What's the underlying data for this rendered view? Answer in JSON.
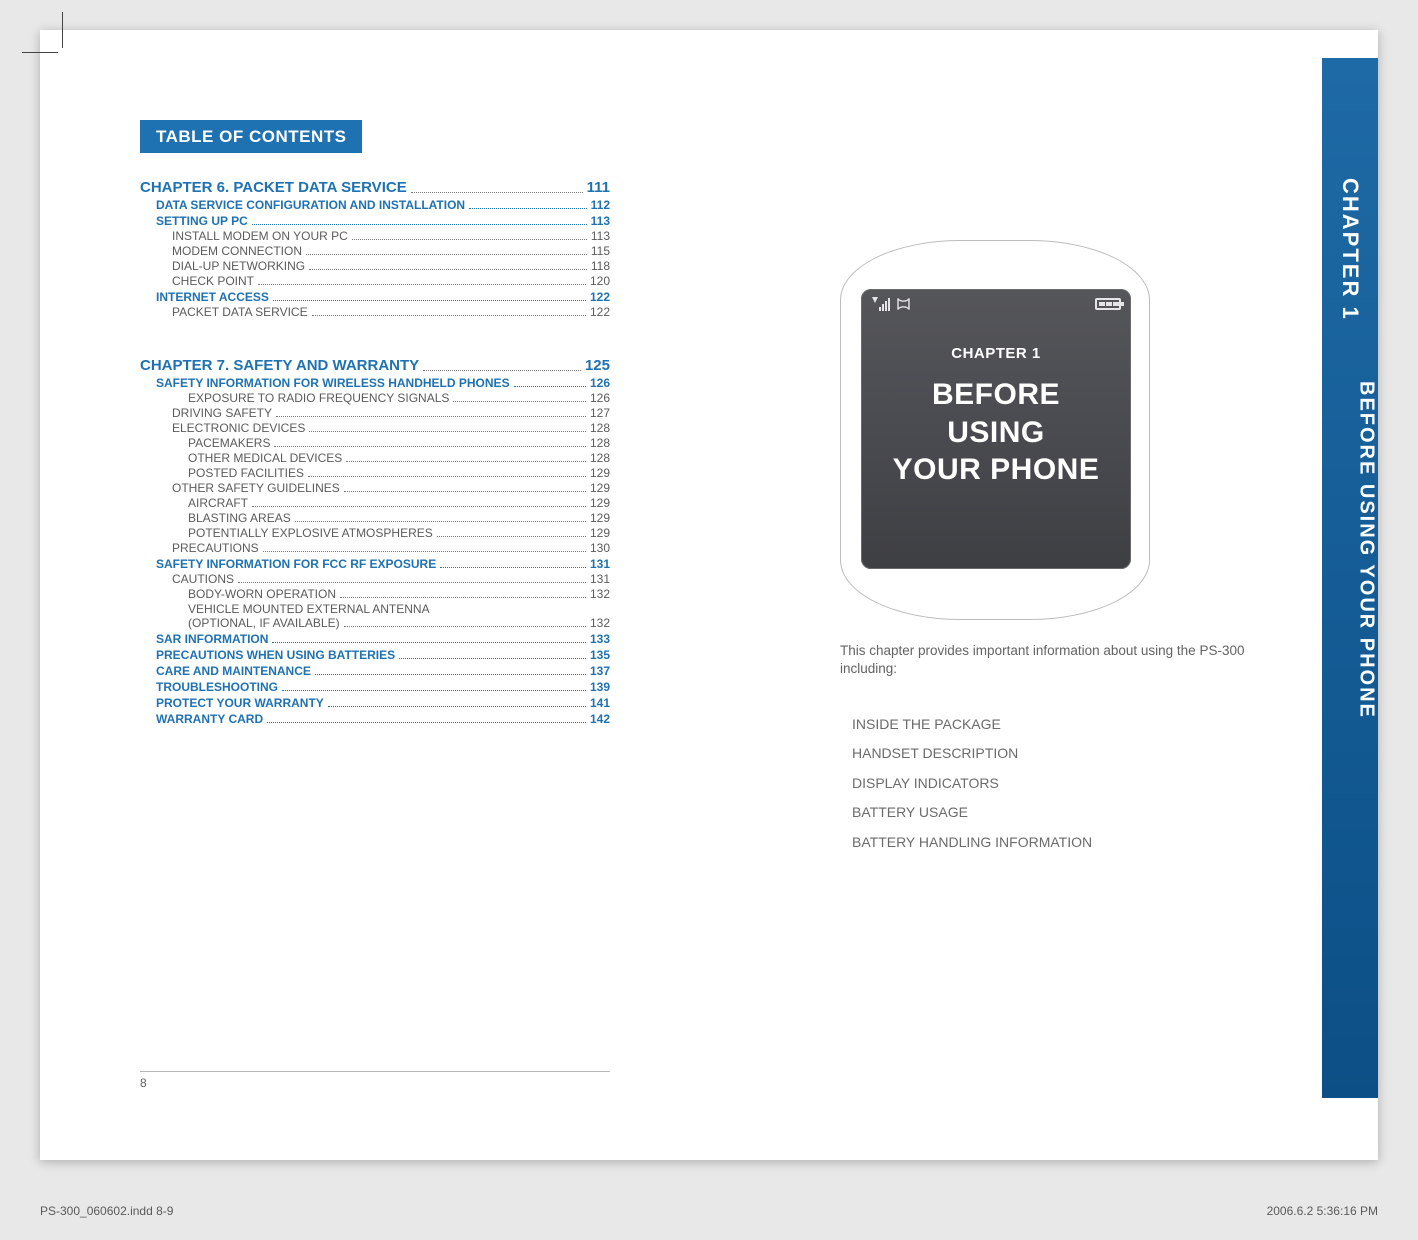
{
  "colors": {
    "accent": "#1f72b2",
    "text": "#5b5b5b",
    "sidetab_top": "#1e6aa6",
    "sidetab_bottom": "#0c4f86",
    "page_bg": "#e8e8e8",
    "sheet_bg": "#ffffff"
  },
  "toc": {
    "heading": "TABLE OF CONTENTS",
    "chapters": [
      {
        "title": "CHAPTER 6. PACKET DATA SERVICE",
        "page": "111",
        "sections": [
          {
            "label": "DATA SERVICE CONFIGURATION AND INSTALLATION",
            "page": "112",
            "level": "sec"
          },
          {
            "label": "SETTING UP PC",
            "page": "113",
            "level": "sec"
          },
          {
            "label": "INSTALL MODEM ON YOUR PC",
            "page": "113",
            "level": "sub"
          },
          {
            "label": "MODEM CONNECTION",
            "page": "115",
            "level": "sub"
          },
          {
            "label": "DIAL-UP NETWORKING",
            "page": "118",
            "level": "sub"
          },
          {
            "label": "CHECK POINT",
            "page": "120",
            "level": "sub"
          },
          {
            "label": "INTERNET ACCESS",
            "page": "122",
            "level": "sec"
          },
          {
            "label": "PACKET DATA SERVICE",
            "page": "122",
            "level": "sub"
          }
        ]
      },
      {
        "title": "CHAPTER 7. SAFETY AND WARRANTY",
        "page": "125",
        "sections": [
          {
            "label": "SAFETY INFORMATION FOR WIRELESS HANDHELD PHONES",
            "page": "126",
            "level": "sec"
          },
          {
            "label": "EXPOSURE TO RADIO FREQUENCY SIGNALS",
            "page": "126",
            "level": "sub2"
          },
          {
            "label": "DRIVING SAFETY",
            "page": "127",
            "level": "sub"
          },
          {
            "label": "ELECTRONIC DEVICES",
            "page": "128",
            "level": "sub"
          },
          {
            "label": "PACEMAKERS",
            "page": "128",
            "level": "sub2"
          },
          {
            "label": "OTHER MEDICAL DEVICES",
            "page": "128",
            "level": "sub2"
          },
          {
            "label": "POSTED FACILITIES",
            "page": "129",
            "level": "sub2"
          },
          {
            "label": "OTHER SAFETY GUIDELINES",
            "page": "129",
            "level": "sub"
          },
          {
            "label": "AIRCRAFT",
            "page": "129",
            "level": "sub2"
          },
          {
            "label": "BLASTING AREAS",
            "page": "129",
            "level": "sub2"
          },
          {
            "label": "POTENTIALLY EXPLOSIVE ATMOSPHERES",
            "page": "129",
            "level": "sub2"
          },
          {
            "label": "PRECAUTIONS",
            "page": "130",
            "level": "sub"
          },
          {
            "label": "SAFETY INFORMATION FOR FCC RF EXPOSURE",
            "page": "131",
            "level": "sec"
          },
          {
            "label": "CAUTIONS",
            "page": "131",
            "level": "sub"
          },
          {
            "label": "BODY-WORN OPERATION",
            "page": "132",
            "level": "sub2"
          },
          {
            "label": "VEHICLE MOUNTED EXTERNAL ANTENNA",
            "label2": "(OPTIONAL, IF AVAILABLE)",
            "page": "132",
            "level": "two"
          },
          {
            "label": "SAR INFORMATION",
            "page": "133",
            "level": "sec"
          },
          {
            "label": "PRECAUTIONS WHEN USING BATTERIES",
            "page": "135",
            "level": "sec"
          },
          {
            "label": "CARE AND MAINTENANCE",
            "page": "137",
            "level": "sec"
          },
          {
            "label": "TROUBLESHOOTING",
            "page": "139",
            "level": "sec"
          },
          {
            "label": "PROTECT YOUR WARRANTY",
            "page": "141",
            "level": "sec"
          },
          {
            "label": "WARRANTY CARD",
            "page": "142",
            "level": "sec"
          }
        ]
      }
    ]
  },
  "leftPageNumber": "8",
  "rightPage": {
    "screen": {
      "chapter": "CHAPTER 1",
      "lines": [
        "BEFORE",
        "USING",
        "YOUR PHONE"
      ],
      "signal_glyph": "▮▯₊ıl ⤲",
      "battery": true
    },
    "intro": "This chapter provides important information about using the PS-300 including:",
    "topics": [
      "INSIDE THE PACKAGE",
      "HANDSET DESCRIPTION",
      "DISPLAY INDICATORS",
      "BATTERY USAGE",
      "BATTERY HANDLING INFORMATION"
    ]
  },
  "sideTab": {
    "chapter": "CHAPTER 1",
    "subtitle": "BEFORE USING YOUR PHONE"
  },
  "footer": {
    "left": "PS-300_060602.indd   8-9",
    "right": "2006.6.2   5:36:16 PM"
  }
}
